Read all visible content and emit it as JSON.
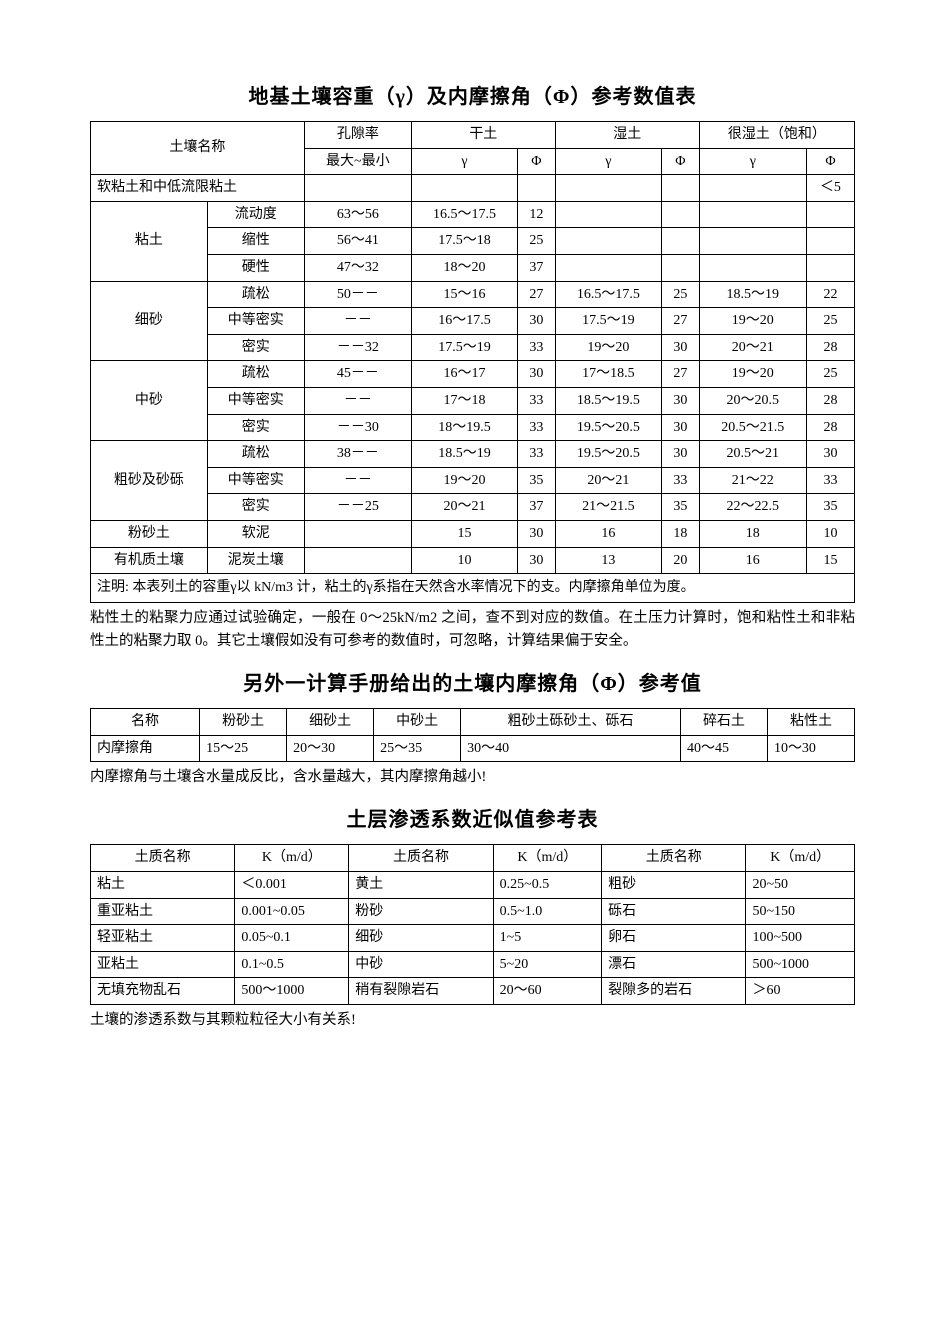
{
  "table1": {
    "title": "地基土壤容重（γ）及内摩擦角（Φ）参考数值表",
    "headers": {
      "soil_name": "土壤名称",
      "porosity": "孔隙率",
      "dry": "干土",
      "wet": "湿土",
      "very_wet": "很湿土（饱和）",
      "max_min": "最大~最小",
      "gamma": "γ",
      "phi": "Φ"
    },
    "rows": [
      {
        "name1": "软粘土和中低流限粘土",
        "name2": "",
        "porosity": "",
        "d_g": "",
        "d_p": "",
        "w_g": "",
        "w_p": "",
        "v_g": "",
        "v_p": "＜5",
        "span": 2
      },
      {
        "name1": "粘土",
        "name2": "流动度",
        "porosity": "63～56",
        "d_g": "16.5～17.5",
        "d_p": "12",
        "w_g": "",
        "w_p": "",
        "v_g": "",
        "v_p": "",
        "group": 3
      },
      {
        "name2": "缩性",
        "porosity": "56～41",
        "d_g": "17.5～18",
        "d_p": "25",
        "w_g": "",
        "w_p": "",
        "v_g": "",
        "v_p": ""
      },
      {
        "name2": "硬性",
        "porosity": "47～32",
        "d_g": "18～20",
        "d_p": "37",
        "w_g": "",
        "w_p": "",
        "v_g": "",
        "v_p": ""
      },
      {
        "name1": "细砂",
        "name2": "疏松",
        "porosity": "50－－",
        "d_g": "15～16",
        "d_p": "27",
        "w_g": "16.5～17.5",
        "w_p": "25",
        "v_g": "18.5～19",
        "v_p": "22",
        "group": 3
      },
      {
        "name2": "中等密实",
        "porosity": "－－",
        "d_g": "16～17.5",
        "d_p": "30",
        "w_g": "17.5～19",
        "w_p": "27",
        "v_g": "19～20",
        "v_p": "25"
      },
      {
        "name2": "密实",
        "porosity": "－－32",
        "d_g": "17.5～19",
        "d_p": "33",
        "w_g": "19～20",
        "w_p": "30",
        "v_g": "20～21",
        "v_p": "28"
      },
      {
        "name1": "中砂",
        "name2": "疏松",
        "porosity": "45－－",
        "d_g": "16～17",
        "d_p": "30",
        "w_g": "17～18.5",
        "w_p": "27",
        "v_g": "19～20",
        "v_p": "25",
        "group": 3
      },
      {
        "name2": "中等密实",
        "porosity": "－－",
        "d_g": "17～18",
        "d_p": "33",
        "w_g": "18.5～19.5",
        "w_p": "30",
        "v_g": "20～20.5",
        "v_p": "28"
      },
      {
        "name2": "密实",
        "porosity": "－－30",
        "d_g": "18～19.5",
        "d_p": "33",
        "w_g": "19.5～20.5",
        "w_p": "30",
        "v_g": "20.5～21.5",
        "v_p": "28"
      },
      {
        "name1": "粗砂及砂砾",
        "name2": "疏松",
        "porosity": "38－－",
        "d_g": "18.5～19",
        "d_p": "33",
        "w_g": "19.5～20.5",
        "w_p": "30",
        "v_g": "20.5～21",
        "v_p": "30",
        "group": 3
      },
      {
        "name2": "中等密实",
        "porosity": "－－",
        "d_g": "19～20",
        "d_p": "35",
        "w_g": "20～21",
        "w_p": "33",
        "v_g": "21～22",
        "v_p": "33"
      },
      {
        "name2": "密实",
        "porosity": "－－25",
        "d_g": "20～21",
        "d_p": "37",
        "w_g": "21～21.5",
        "w_p": "35",
        "v_g": "22～22.5",
        "v_p": "35"
      },
      {
        "name1": "粉砂土",
        "name2": "软泥",
        "porosity": "",
        "d_g": "15",
        "d_p": "30",
        "w_g": "16",
        "w_p": "18",
        "v_g": "18",
        "v_p": "10",
        "group": 1
      },
      {
        "name1": "有机质土壤",
        "name2": "泥炭土壤",
        "porosity": "",
        "d_g": "10",
        "d_p": "30",
        "w_g": "13",
        "w_p": "20",
        "v_g": "16",
        "v_p": "15",
        "group": 1
      }
    ],
    "note": "注明: 本表列土的容重γ以 kN/m3 计，粘土的γ系指在天然含水率情况下的支。内摩擦角单位为度。",
    "para": "粘性土的粘聚力应通过试验确定，一般在 0～25kN/m2 之间，查不到对应的数值。在土压力计算时，饱和粘性土和非粘性土的粘聚力取 0。其它土壤假如没有可参考的数值时，可忽略，计算结果偏于安全。"
  },
  "table2": {
    "title": "另外一计算手册给出的土壤内摩擦角（Φ）参考值",
    "headers": [
      "名称",
      "粉砂土",
      "细砂土",
      "中砂土",
      "粗砂土砾砂土、砾石",
      "碎石土",
      "粘性土"
    ],
    "row_label": "内摩擦角",
    "values": [
      "15～25",
      "20～30",
      "25～35",
      "30～40",
      "40～45",
      "10～30"
    ],
    "para": "内摩擦角与土壤含水量成反比，含水量越大，其内摩擦角越小!"
  },
  "table3": {
    "title": "土层渗透系数近似值参考表",
    "headers": [
      "土质名称",
      "K（m/d）",
      "土质名称",
      "K（m/d）",
      "土质名称",
      "K（m/d）"
    ],
    "rows": [
      [
        "粘土",
        "＜0.001",
        "黄土",
        "0.25~0.5",
        "粗砂",
        "20~50"
      ],
      [
        "重亚粘土",
        "0.001~0.05",
        "粉砂",
        "0.5~1.0",
        "砾石",
        "50~150"
      ],
      [
        "轻亚粘土",
        "0.05~0.1",
        "细砂",
        "1~5",
        "卵石",
        "100~500"
      ],
      [
        "亚粘土",
        "0.1~0.5",
        "中砂",
        "5~20",
        "漂石",
        "500~1000"
      ],
      [
        "无填充物乱石",
        "500～1000",
        "稍有裂隙岩石",
        "20～60",
        "裂隙多的岩石",
        "＞60"
      ]
    ],
    "para": "土壤的渗透系数与其颗粒粒径大小有关系!"
  }
}
